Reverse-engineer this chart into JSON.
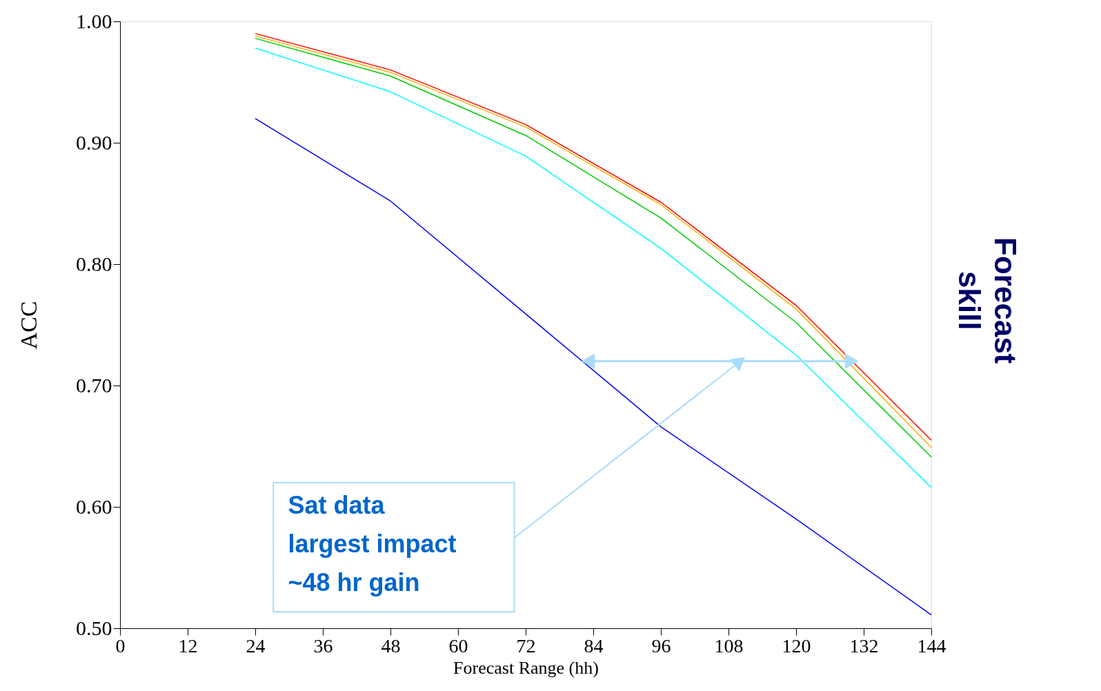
{
  "chart_data": {
    "type": "line",
    "xlabel": "Forecast Range (hh)",
    "ylabel": "ACC",
    "x": [
      24,
      48,
      72,
      96,
      120,
      144
    ],
    "series": [
      {
        "color": "#ff0000",
        "values": [
          0.99,
          0.96,
          0.915,
          0.851,
          0.766,
          0.655
        ]
      },
      {
        "color": "#ffb000",
        "values": [
          0.988,
          0.958,
          0.913,
          0.849,
          0.763,
          0.649
        ]
      },
      {
        "color": "#00cc00",
        "values": [
          0.986,
          0.955,
          0.906,
          0.838,
          0.752,
          0.641
        ]
      },
      {
        "color": "#00ffff",
        "values": [
          0.978,
          0.942,
          0.889,
          0.813,
          0.725,
          0.616
        ]
      },
      {
        "color": "#0000ff",
        "values": [
          0.92,
          0.852,
          0.759,
          0.666,
          0.59,
          0.511
        ]
      }
    ],
    "xlim": [
      0,
      144
    ],
    "xticks": [
      0,
      12,
      24,
      36,
      48,
      60,
      72,
      84,
      96,
      108,
      120,
      132,
      144
    ],
    "ylim": [
      0.5,
      1.0
    ],
    "yticks": [
      {
        "value": 0.5,
        "label": "0.50"
      },
      {
        "value": 0.6,
        "label": "0.60"
      },
      {
        "value": 0.7,
        "label": "0.70"
      },
      {
        "value": 0.8,
        "label": "0.80"
      },
      {
        "value": 0.9,
        "label": "0.90"
      },
      {
        "value": 1.0,
        "label": "1.00"
      }
    ],
    "grid": false,
    "annotations": [
      "Sat data\nlargest impact\n~48 hr gain",
      "Forecast\nskill"
    ]
  }
}
